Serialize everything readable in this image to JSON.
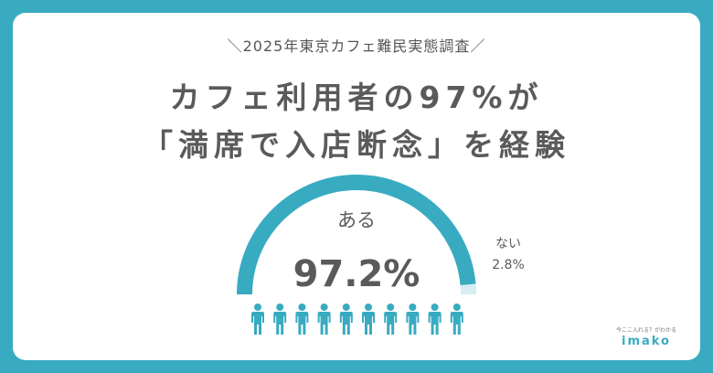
{
  "header": {
    "subtitle": "＼2025年東京カフェ難民実態調査／",
    "title_line1": "カフェ利用者の97%が",
    "title_line2": "「満席で入店断念」を経験"
  },
  "chart_data": {
    "type": "pie",
    "style": "semi-donut",
    "categories": [
      "ある",
      "ない"
    ],
    "values": [
      97.2,
      2.8
    ],
    "labels": [
      "97.2%",
      "2.8%"
    ],
    "colors": [
      "#38abc1",
      "#d6eef3"
    ]
  },
  "icons": {
    "person_icon_count": 10,
    "person_icon": "person-icon",
    "color": "#38abc1"
  },
  "brand": {
    "tagline": "今ここ入れる？がわかる",
    "logo": "imako"
  }
}
